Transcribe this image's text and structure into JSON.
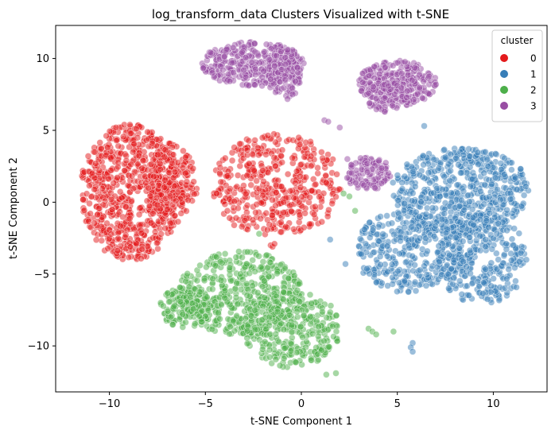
{
  "chart_data": {
    "type": "scatter",
    "title": "log_transform_data Clusters Visualized with t-SNE",
    "xlabel": "t-SNE Component 1",
    "ylabel": "t-SNE Component 2",
    "xlim": [
      -12.8,
      12.8
    ],
    "ylim": [
      -13.2,
      12.3
    ],
    "xticks": [
      -10,
      -5,
      0,
      5,
      10
    ],
    "yticks": [
      -10,
      -5,
      0,
      5,
      10
    ],
    "xtick_labels": [
      "−10",
      "−5",
      "0",
      "5",
      "10"
    ],
    "ytick_labels": [
      "−10",
      "−5",
      "0",
      "5",
      "10"
    ],
    "grid": false,
    "legend": {
      "title": "cluster",
      "placement": "top-right",
      "entries": [
        "0",
        "1",
        "2",
        "3"
      ]
    },
    "colors": {
      "0": "#e41a1c",
      "1": "#377eb8",
      "2": "#4daf4a",
      "3": "#984ea3"
    },
    "point_alpha": 0.5,
    "clusters": [
      {
        "name": "0",
        "blobs": [
          {
            "cx": -8.9,
            "cy": 0.7,
            "rx": 2.7,
            "ry": 4.9,
            "n": 700
          },
          {
            "cx": -6.8,
            "cy": 1.2,
            "rx": 1.4,
            "ry": 3.0,
            "n": 160
          },
          {
            "cx": -1.3,
            "cy": 1.2,
            "rx": 3.5,
            "ry": 3.7,
            "n": 430
          }
        ]
      },
      {
        "name": "1",
        "blobs": [
          {
            "cx": 8.3,
            "cy": 0.8,
            "rx": 3.7,
            "ry": 3.2,
            "n": 560
          },
          {
            "cx": 5.6,
            "cy": -3.4,
            "rx": 2.9,
            "ry": 3.0,
            "n": 330
          },
          {
            "cx": 9.4,
            "cy": -3.9,
            "rx": 2.4,
            "ry": 3.3,
            "n": 300
          }
        ]
      },
      {
        "name": "2",
        "blobs": [
          {
            "cx": -3.2,
            "cy": -6.3,
            "rx": 3.4,
            "ry": 3.0,
            "n": 450
          },
          {
            "cx": -0.5,
            "cy": -8.8,
            "rx": 2.6,
            "ry": 2.8,
            "n": 320
          },
          {
            "cx": -6.0,
            "cy": -7.3,
            "rx": 1.4,
            "ry": 1.5,
            "n": 130
          }
        ]
      },
      {
        "name": "3",
        "blobs": [
          {
            "cx": -2.5,
            "cy": 9.6,
            "rx": 2.8,
            "ry": 1.6,
            "n": 340
          },
          {
            "cx": -0.9,
            "cy": 9.0,
            "rx": 0.9,
            "ry": 2.0,
            "n": 100
          },
          {
            "cx": 5.0,
            "cy": 8.3,
            "rx": 2.1,
            "ry": 1.6,
            "n": 280
          },
          {
            "cx": 4.5,
            "cy": 7.3,
            "rx": 1.2,
            "ry": 1.1,
            "n": 60
          },
          {
            "cx": 3.5,
            "cy": 2.0,
            "rx": 1.2,
            "ry": 1.2,
            "n": 110
          }
        ]
      }
    ],
    "outliers": [
      {
        "cluster": "0",
        "x": -3.5,
        "y": -1.6
      },
      {
        "cluster": "0",
        "x": -3.1,
        "y": -1.7
      },
      {
        "cluster": "0",
        "x": -2.8,
        "y": -1.9
      },
      {
        "cluster": "0",
        "x": -1.6,
        "y": -3.0
      },
      {
        "cluster": "0",
        "x": -1.5,
        "y": -3.1
      },
      {
        "cluster": "0",
        "x": -1.4,
        "y": -2.9
      },
      {
        "cluster": "0",
        "x": 0.5,
        "y": 3.2
      },
      {
        "cluster": "2",
        "x": -2.2,
        "y": -2.2
      },
      {
        "cluster": "2",
        "x": 2.2,
        "y": 0.6
      },
      {
        "cluster": "2",
        "x": 2.5,
        "y": 0.4
      },
      {
        "cluster": "2",
        "x": 2.8,
        "y": -0.6
      },
      {
        "cluster": "2",
        "x": 1.8,
        "y": -11.9
      },
      {
        "cluster": "2",
        "x": 1.3,
        "y": -12.0
      },
      {
        "cluster": "2",
        "x": 3.5,
        "y": -8.8
      },
      {
        "cluster": "2",
        "x": 3.7,
        "y": -9.0
      },
      {
        "cluster": "2",
        "x": 3.9,
        "y": -9.2
      },
      {
        "cluster": "2",
        "x": 4.8,
        "y": -9.0
      },
      {
        "cluster": "1",
        "x": 1.5,
        "y": -2.6
      },
      {
        "cluster": "1",
        "x": 5.8,
        "y": -9.8
      },
      {
        "cluster": "1",
        "x": 5.7,
        "y": -10.1
      },
      {
        "cluster": "1",
        "x": 5.8,
        "y": -10.4
      },
      {
        "cluster": "1",
        "x": 6.4,
        "y": 5.3
      },
      {
        "cluster": "1",
        "x": 2.3,
        "y": -4.3
      },
      {
        "cluster": "3",
        "x": 1.2,
        "y": 5.7
      },
      {
        "cluster": "3",
        "x": 1.4,
        "y": 5.6
      },
      {
        "cluster": "3",
        "x": 2.0,
        "y": 5.2
      },
      {
        "cluster": "3",
        "x": 2.4,
        "y": 3.0
      },
      {
        "cluster": "3",
        "x": 2.6,
        "y": 2.6
      }
    ]
  }
}
